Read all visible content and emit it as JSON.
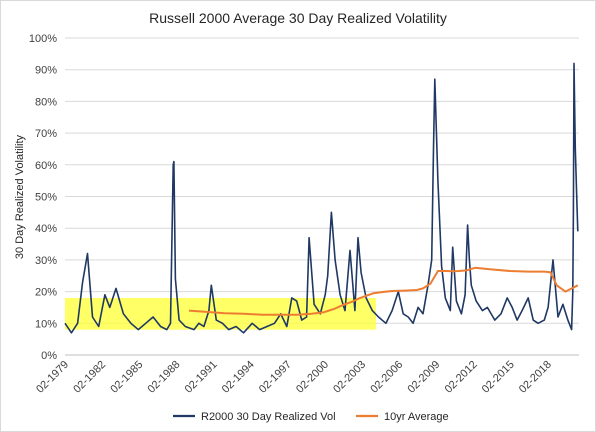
{
  "chart_data": {
    "type": "line",
    "title": "Russell 2000 Average 30 Day Realized Volatility",
    "xlabel": "",
    "ylabel": "30 Day Realized Volatility",
    "ylim": [
      0,
      100
    ],
    "y_ticks": [
      "0%",
      "10%",
      "20%",
      "30%",
      "40%",
      "50%",
      "60%",
      "70%",
      "80%",
      "90%",
      "100%"
    ],
    "x_range": [
      1979.08,
      2020.6
    ],
    "x_ticks": [
      "02-1979",
      "02-1982",
      "02-1985",
      "02-1988",
      "02-1991",
      "02-1994",
      "02-1997",
      "02-2000",
      "02-2003",
      "02-2006",
      "02-2009",
      "02-2012",
      "02-2015",
      "02-2018"
    ],
    "x_tick_values": [
      1979.08,
      1982.08,
      1985.08,
      1988.08,
      1991.08,
      1994.08,
      1997.08,
      2000.08,
      2003.08,
      2006.08,
      2009.08,
      2012.08,
      2015.08,
      2018.08
    ],
    "grid": "horizontal",
    "legend_position": "bottom",
    "highlight_region": {
      "x": [
        1979.08,
        2004.2
      ],
      "y": [
        8,
        18
      ],
      "color": "#ffff33"
    },
    "series": [
      {
        "name": "R2000 30 Day Realized Vol",
        "color": "#1f3864",
        "x": [
          1979.08,
          1979.6,
          1980.1,
          1980.5,
          1980.9,
          1981.3,
          1981.8,
          1982.3,
          1982.7,
          1983.2,
          1983.8,
          1984.4,
          1985.0,
          1985.6,
          1986.2,
          1986.8,
          1987.3,
          1987.6,
          1987.82,
          1987.88,
          1988.0,
          1988.3,
          1988.8,
          1989.5,
          1989.9,
          1990.3,
          1990.7,
          1990.9,
          1991.3,
          1991.8,
          1992.3,
          1992.9,
          1993.5,
          1994.2,
          1994.8,
          1995.4,
          1996.0,
          1996.5,
          1997.0,
          1997.4,
          1997.8,
          1998.2,
          1998.6,
          1998.8,
          1999.2,
          1999.7,
          2000.1,
          2000.3,
          2000.6,
          2000.9,
          2001.3,
          2001.7,
          2002.1,
          2002.5,
          2002.75,
          2003.0,
          2003.4,
          2003.9,
          2004.4,
          2005.0,
          2005.5,
          2006.0,
          2006.4,
          2006.8,
          2007.2,
          2007.6,
          2008.0,
          2008.4,
          2008.7,
          2008.85,
          2008.95,
          2009.2,
          2009.5,
          2009.8,
          2010.2,
          2010.4,
          2010.7,
          2011.1,
          2011.4,
          2011.6,
          2011.75,
          2011.9,
          2012.3,
          2012.8,
          2013.2,
          2013.8,
          2014.3,
          2014.8,
          2015.2,
          2015.6,
          2016.0,
          2016.5,
          2016.9,
          2017.3,
          2017.8,
          2018.1,
          2018.5,
          2018.9,
          2019.3,
          2019.7,
          2020.0,
          2020.1,
          2020.15,
          2020.2,
          2020.3,
          2020.45,
          2020.5
        ],
        "y": [
          10,
          7,
          10,
          23,
          32,
          12,
          9,
          19,
          15,
          21,
          13,
          10,
          8,
          10,
          12,
          9,
          8,
          10,
          60,
          61,
          24,
          11,
          9,
          8,
          10,
          9,
          14,
          22,
          11,
          10,
          8,
          9,
          7,
          10,
          8,
          9,
          10,
          13,
          9,
          18,
          17,
          11,
          12,
          37,
          16,
          13,
          19,
          25,
          45,
          30,
          19,
          14,
          33,
          14,
          37,
          26,
          18,
          14,
          12,
          10,
          14,
          20,
          13,
          12,
          10,
          15,
          13,
          22,
          30,
          65,
          87,
          55,
          28,
          18,
          14,
          34,
          17,
          13,
          19,
          41,
          30,
          22,
          17,
          14,
          15,
          11,
          13,
          18,
          15,
          11,
          14,
          18,
          11,
          10,
          11,
          15,
          30,
          12,
          16,
          11,
          8,
          20,
          45,
          92,
          65,
          46,
          39
        ]
      },
      {
        "name": "10yr Average",
        "color": "#ed7d31",
        "x": [
          1989.1,
          1990.5,
          1992.0,
          1993.5,
          1995.0,
          1996.5,
          1997.8,
          1999.0,
          2000.0,
          2000.8,
          2001.5,
          2002.2,
          2002.8,
          2003.5,
          2004.0,
          2004.6,
          2005.5,
          2006.5,
          2007.5,
          2008.0,
          2008.6,
          2009.2,
          2009.8,
          2010.4,
          2010.9,
          2011.5,
          2012.2,
          2013.5,
          2015.0,
          2016.5,
          2017.8,
          2018.3,
          2018.8,
          2019.5,
          2020.5
        ],
        "y": [
          14,
          13.6,
          13.2,
          13,
          12.7,
          12.7,
          12.7,
          13,
          13.5,
          14.5,
          15.7,
          16.7,
          17.8,
          18.8,
          19.5,
          19.8,
          20.2,
          20.3,
          20.5,
          21,
          22.5,
          26.5,
          26.5,
          26.4,
          26.5,
          26.7,
          27.5,
          27,
          26.5,
          26.3,
          26.3,
          26.1,
          22,
          20,
          22
        ]
      }
    ]
  }
}
